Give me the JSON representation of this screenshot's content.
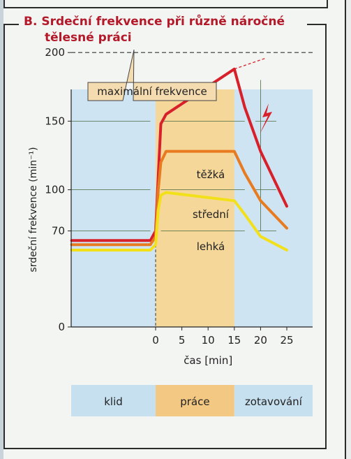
{
  "title_line1": "B. Srdeční frekvence při různě náročné",
  "title_line2": "tělesné práci",
  "chart_data": {
    "type": "line",
    "xlabel": "čas [min]",
    "ylabel": "srdeční frekvence (min⁻¹)",
    "x_ticks": [
      "0",
      "5",
      "10",
      "15",
      "20",
      "25"
    ],
    "y_ticks": [
      "0",
      "70",
      "100",
      "150",
      "200"
    ],
    "xlim": [
      -16,
      27
    ],
    "ylim": [
      0,
      250
    ],
    "max_label": "maximální frekvence",
    "max_value": 200,
    "series": [
      {
        "name": "těžká",
        "color": "#d8202a",
        "x": [
          -16,
          -1,
          0,
          0.5,
          1,
          2,
          15,
          17,
          20,
          25
        ],
        "y": [
          63,
          63,
          70,
          110,
          148,
          155,
          188,
          160,
          128,
          88
        ]
      },
      {
        "name": "střední",
        "color": "#e87a1f",
        "x": [
          -16,
          -1,
          0,
          0.5,
          1,
          2,
          15,
          17,
          20,
          25
        ],
        "y": [
          60,
          60,
          66,
          100,
          120,
          128,
          128,
          112,
          92,
          72
        ]
      },
      {
        "name": "lehká",
        "color": "#f2e01a",
        "x": [
          -16,
          -1,
          0,
          0.5,
          1,
          2,
          15,
          17,
          20,
          25
        ],
        "y": [
          56,
          56,
          60,
          85,
          96,
          98,
          92,
          82,
          66,
          56
        ]
      }
    ],
    "phases": [
      {
        "label": "klid",
        "color": "#c7e0f0"
      },
      {
        "label": "práce",
        "color": "#f2c882"
      },
      {
        "label": "zotavování",
        "color": "#c7e0f0"
      }
    ],
    "color_work_band": "#f6d79a",
    "color_plot_bg": "#cfe4f3"
  }
}
